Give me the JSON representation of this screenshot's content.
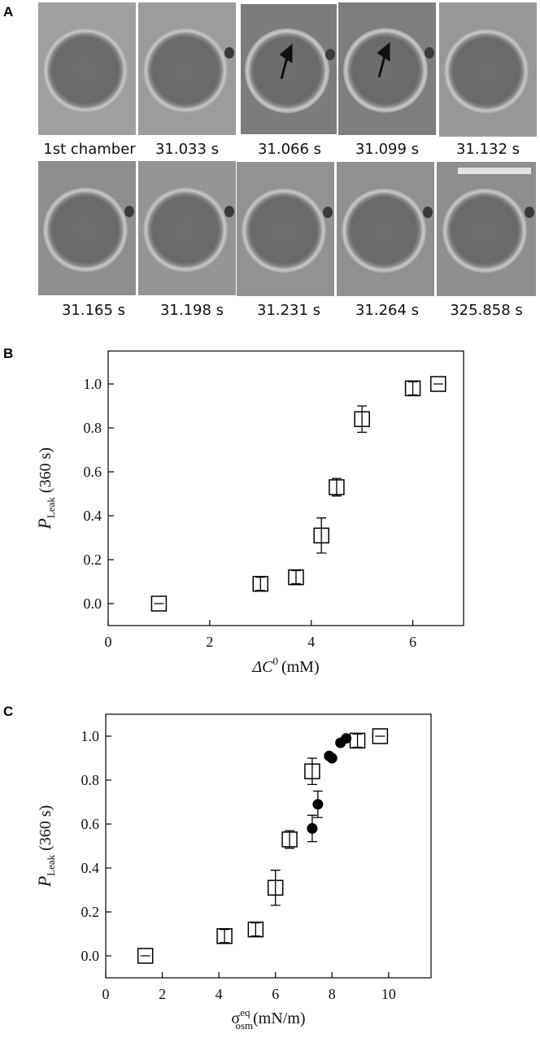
{
  "panel_a": {
    "label": "A",
    "images": [
      {
        "caption": "1st chamber"
      },
      {
        "caption": "31.033 s"
      },
      {
        "caption": "31.066 s"
      },
      {
        "caption": "31.099 s"
      },
      {
        "caption": "31.132 s"
      },
      {
        "caption": "31.165 s"
      },
      {
        "caption": "31.198 s"
      },
      {
        "caption": "31.231 s"
      },
      {
        "caption": "31.264 s"
      },
      {
        "caption": "325.858 s"
      }
    ]
  },
  "chart_data": [
    {
      "type": "scatter",
      "panel_label": "B",
      "xlabel": {
        "symbol": "ΔC",
        "sup": "0",
        "unit": "(mM)"
      },
      "ylabel": {
        "symbol": "P",
        "sub": "Leak",
        "unit": "(360 s)"
      },
      "xlim": [
        0,
        7
      ],
      "ylim": [
        -0.1,
        1.15
      ],
      "xticks": [
        0,
        2,
        4,
        6
      ],
      "yticks": [
        {
          "value": 0,
          "label": "0.0"
        },
        {
          "value": 0.2,
          "label": "0.2"
        },
        {
          "value": 0.4,
          "label": "0.4"
        },
        {
          "value": 0.6,
          "label": "0.6"
        },
        {
          "value": 0.8,
          "label": "0.8"
        },
        {
          "value": 1,
          "label": "1.0"
        }
      ],
      "series": [
        {
          "marker": "square",
          "color": "#000000",
          "fill": "#ffffff",
          "x": [
            1,
            3,
            3.7,
            4.2,
            4.5,
            5,
            6,
            6.5
          ],
          "values": [
            0,
            0.09,
            0.12,
            0.31,
            0.53,
            0.84,
            0.98,
            1.0
          ],
          "errors": [
            0,
            0.03,
            0.03,
            0.08,
            0.04,
            0.06,
            0.03,
            0
          ]
        }
      ]
    },
    {
      "type": "scatter",
      "panel_label": "C",
      "xlabel": {
        "symbol": "σ",
        "sup": "eq",
        "sub": "osm",
        "unit": "(mN/m)"
      },
      "ylabel": {
        "symbol": "P",
        "sub": "Leak",
        "unit": "(360 s)"
      },
      "xlim": [
        0,
        11.5
      ],
      "ylim": [
        -0.1,
        1.1
      ],
      "xticks": [
        0,
        2,
        4,
        6,
        8,
        10
      ],
      "yticks": [
        {
          "value": 0,
          "label": "0.0"
        },
        {
          "value": 0.2,
          "label": "0.2"
        },
        {
          "value": 0.4,
          "label": "0.4"
        },
        {
          "value": 0.6,
          "label": "0.6"
        },
        {
          "value": 0.8,
          "label": "0.8"
        },
        {
          "value": 1,
          "label": "1.0"
        }
      ],
      "series": [
        {
          "marker": "square",
          "color": "#000000",
          "fill": "#ffffff",
          "x": [
            1.4,
            4.2,
            5.3,
            6.0,
            6.5,
            7.3,
            8.9,
            9.7
          ],
          "values": [
            0,
            0.09,
            0.12,
            0.31,
            0.53,
            0.84,
            0.98,
            1.0
          ],
          "errors": [
            0,
            0.03,
            0.03,
            0.08,
            0.04,
            0.06,
            0.03,
            0
          ]
        },
        {
          "marker": "circle",
          "color": "#000000",
          "fill": "#000000",
          "x": [
            7.3,
            7.5,
            7.9,
            8.0,
            8.3,
            8.5
          ],
          "values": [
            0.58,
            0.69,
            0.91,
            0.9,
            0.97,
            0.99
          ],
          "errors": [
            0.06,
            0.06,
            0,
            0,
            0,
            0
          ]
        }
      ]
    }
  ]
}
